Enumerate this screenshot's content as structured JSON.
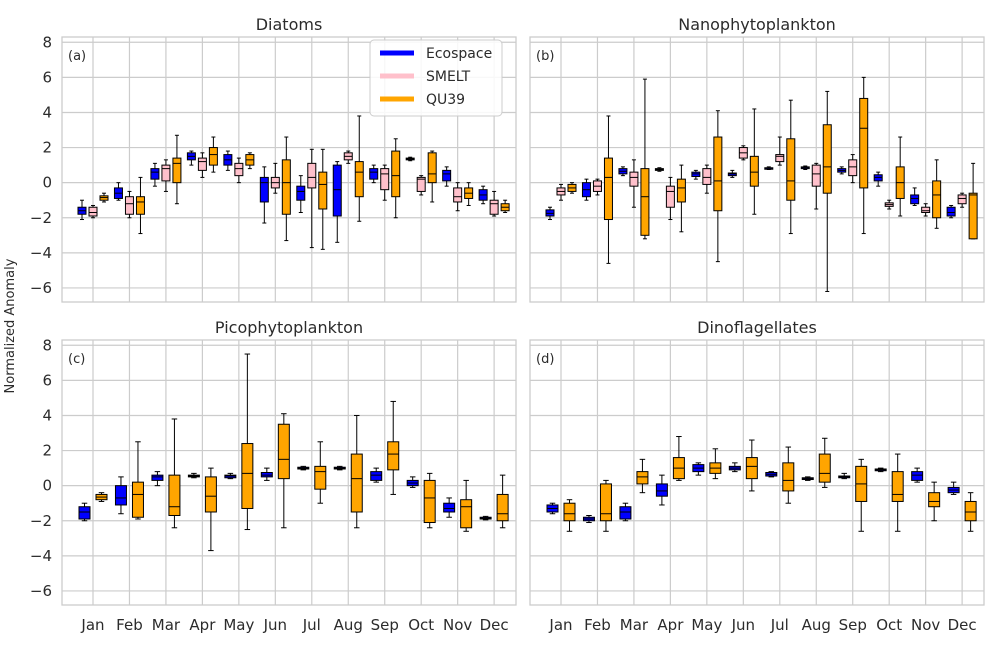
{
  "figure": {
    "ylabel": "Normalized Anomaly"
  },
  "legend": [
    {
      "name": "Ecospace",
      "color": "#0000ff"
    },
    {
      "name": "SMELT",
      "color": "#ffc0cb"
    },
    {
      "name": "QU39",
      "color": "#ffa500"
    }
  ],
  "chart_data": [
    {
      "type": "box",
      "title": "Diatoms",
      "panel_label": "(a)",
      "categories": [
        "Jan",
        "Feb",
        "Mar",
        "Apr",
        "May",
        "Jun",
        "Jul",
        "Aug",
        "Sep",
        "Oct",
        "Nov",
        "Dec"
      ],
      "ylim": [
        -6.8,
        8.3
      ],
      "yticks": [
        -6,
        -4,
        -2,
        0,
        2,
        4,
        6,
        8
      ],
      "grid": true,
      "legend_position": "top-right",
      "show_x_ticklabels": false,
      "show_y_ticklabels": true,
      "series": [
        {
          "name": "Ecospace",
          "boxes": [
            [
              -2.1,
              -1.8,
              -1.6,
              -1.4,
              -1.0
            ],
            [
              -1.0,
              -0.9,
              -0.6,
              -0.3,
              0.0
            ],
            [
              -0.2,
              0.2,
              0.6,
              0.8,
              1.1
            ],
            [
              1.0,
              1.3,
              1.5,
              1.7,
              1.8
            ],
            [
              0.7,
              1.0,
              1.3,
              1.6,
              1.8
            ],
            [
              -2.3,
              -1.1,
              0.0,
              0.3,
              0.9
            ],
            [
              -1.7,
              -1.0,
              -0.5,
              -0.2,
              0.4
            ],
            [
              -3.4,
              -1.9,
              -0.4,
              1.0,
              1.2
            ],
            [
              0.0,
              0.2,
              0.6,
              0.8,
              1.0
            ],
            [
              1.25,
              1.3,
              1.35,
              1.4,
              1.45
            ],
            [
              -0.2,
              0.1,
              0.5,
              0.7,
              0.9
            ],
            [
              -1.2,
              -1.0,
              -0.7,
              -0.4,
              -0.2
            ]
          ]
        },
        {
          "name": "SMELT",
          "boxes": [
            [
              -2.0,
              -1.9,
              -1.7,
              -1.4,
              -1.3
            ],
            [
              -2.0,
              -1.8,
              -1.2,
              -0.8,
              -0.5
            ],
            [
              -0.5,
              0.1,
              0.8,
              1.0,
              1.3
            ],
            [
              0.3,
              0.7,
              1.2,
              1.4,
              1.7
            ],
            [
              0.0,
              0.4,
              0.8,
              1.1,
              1.4
            ],
            [
              -0.6,
              -0.3,
              0.0,
              0.3,
              1.1
            ],
            [
              -3.7,
              -0.3,
              0.3,
              1.1,
              1.9
            ],
            [
              1.1,
              1.3,
              1.5,
              1.7,
              1.8
            ],
            [
              -1.0,
              -0.4,
              0.5,
              0.8,
              1.0
            ],
            [
              -0.7,
              -0.5,
              0.2,
              0.3,
              0.4
            ],
            [
              -1.6,
              -1.1,
              -0.8,
              -0.3,
              0.0
            ],
            [
              -1.9,
              -1.8,
              -1.2,
              -1.0,
              -0.5
            ]
          ]
        },
        {
          "name": "QU39",
          "boxes": [
            [
              -1.1,
              -1.0,
              -0.85,
              -0.75,
              -0.6
            ],
            [
              -2.9,
              -1.8,
              -1.1,
              -0.8,
              0.3
            ],
            [
              -1.2,
              0.0,
              1.1,
              1.4,
              2.7
            ],
            [
              0.6,
              1.0,
              1.6,
              2.0,
              2.6
            ],
            [
              0.8,
              1.0,
              1.3,
              1.6,
              1.7
            ],
            [
              -3.3,
              -1.8,
              0.0,
              1.3,
              2.6
            ],
            [
              -3.8,
              -1.5,
              -0.1,
              0.6,
              1.9
            ],
            [
              -2.2,
              -0.8,
              0.6,
              1.2,
              3.8
            ],
            [
              -2.0,
              -0.8,
              0.4,
              1.8,
              2.5
            ],
            [
              -1.1,
              0.0,
              0.5,
              1.7,
              1.8
            ],
            [
              -1.3,
              -0.9,
              -0.6,
              -0.3,
              0.0
            ],
            [
              -1.7,
              -1.6,
              -1.4,
              -1.2,
              -1.0
            ]
          ]
        }
      ]
    },
    {
      "type": "box",
      "title": "Nanophytoplankton",
      "panel_label": "(b)",
      "categories": [
        "Jan",
        "Feb",
        "Mar",
        "Apr",
        "May",
        "Jun",
        "Jul",
        "Aug",
        "Sep",
        "Oct",
        "Nov",
        "Dec"
      ],
      "ylim": [
        -6.8,
        8.3
      ],
      "yticks": [
        -6,
        -4,
        -2,
        0,
        2,
        4,
        6,
        8
      ],
      "grid": true,
      "show_x_ticklabels": false,
      "show_y_ticklabels": false,
      "series": [
        {
          "name": "Ecospace",
          "boxes": [
            [
              -2.1,
              -1.9,
              -1.75,
              -1.55,
              -1.4
            ],
            [
              -1.0,
              -0.8,
              -0.4,
              0.0,
              0.2
            ],
            [
              0.4,
              0.5,
              0.65,
              0.8,
              0.9
            ],
            [
              0.65,
              0.7,
              0.75,
              0.8,
              0.85
            ],
            [
              0.2,
              0.35,
              0.5,
              0.6,
              0.7
            ],
            [
              0.3,
              0.4,
              0.5,
              0.55,
              0.7
            ],
            [
              0.75,
              0.78,
              0.82,
              0.85,
              0.9
            ],
            [
              0.75,
              0.8,
              0.85,
              0.9,
              0.95
            ],
            [
              0.5,
              0.6,
              0.7,
              0.8,
              0.9
            ],
            [
              -0.2,
              0.1,
              0.3,
              0.45,
              0.6
            ],
            [
              -1.3,
              -1.2,
              -0.9,
              -0.7,
              -0.3
            ],
            [
              -2.0,
              -1.9,
              -1.7,
              -1.4,
              -1.3
            ]
          ]
        },
        {
          "name": "SMELT",
          "boxes": [
            [
              -1.0,
              -0.7,
              -0.5,
              -0.3,
              -0.1
            ],
            [
              -0.7,
              -0.5,
              -0.2,
              0.1,
              0.2
            ],
            [
              -1.4,
              -0.2,
              0.3,
              0.6,
              1.3
            ],
            [
              -2.1,
              -1.4,
              -0.5,
              -0.2,
              0.3
            ],
            [
              -0.6,
              -0.1,
              0.3,
              0.8,
              1.0
            ],
            [
              1.3,
              1.4,
              1.7,
              2.0,
              2.1
            ],
            [
              1.0,
              1.2,
              1.5,
              1.6,
              2.6
            ],
            [
              -1.5,
              -0.2,
              0.5,
              1.0,
              1.1
            ],
            [
              0.0,
              0.4,
              0.9,
              1.3,
              1.6
            ],
            [
              -1.5,
              -1.35,
              -1.25,
              -1.15,
              -1.0
            ],
            [
              -1.9,
              -1.7,
              -1.6,
              -1.4,
              -1.2
            ],
            [
              -1.4,
              -1.2,
              -0.9,
              -0.7,
              -0.6
            ]
          ]
        },
        {
          "name": "QU39",
          "boxes": [
            [
              -0.6,
              -0.5,
              -0.3,
              -0.1,
              0.0
            ],
            [
              -4.6,
              -2.1,
              0.3,
              1.4,
              3.8
            ],
            [
              -3.2,
              -3.0,
              -0.8,
              0.8,
              5.9
            ],
            [
              -2.8,
              -1.1,
              -0.3,
              0.2,
              1.0
            ],
            [
              -4.5,
              -1.6,
              0.1,
              2.6,
              4.1
            ],
            [
              -1.8,
              -0.2,
              0.6,
              1.5,
              4.2
            ],
            [
              -2.9,
              -1.0,
              0.1,
              2.5,
              4.7
            ],
            [
              -6.2,
              -0.6,
              0.9,
              3.3,
              5.2
            ],
            [
              -2.9,
              -0.3,
              3.1,
              4.8,
              6.0
            ],
            [
              -1.9,
              -0.9,
              0.0,
              0.9,
              2.6
            ],
            [
              -2.6,
              -2.0,
              -0.7,
              0.1,
              1.3
            ],
            [
              -3.2,
              -3.2,
              -0.7,
              -0.6,
              1.1
            ]
          ]
        }
      ]
    },
    {
      "type": "box",
      "title": "Picophytoplankton",
      "panel_label": "(c)",
      "categories": [
        "Jan",
        "Feb",
        "Mar",
        "Apr",
        "May",
        "Jun",
        "Jul",
        "Aug",
        "Sep",
        "Oct",
        "Nov",
        "Dec"
      ],
      "ylim": [
        -6.8,
        8.3
      ],
      "yticks": [
        -6,
        -4,
        -2,
        0,
        2,
        4,
        6,
        8
      ],
      "grid": true,
      "show_x_ticklabels": true,
      "show_y_ticklabels": true,
      "series": [
        {
          "name": "Ecospace",
          "boxes": [
            [
              -2.0,
              -1.9,
              -1.5,
              -1.2,
              -1.0
            ],
            [
              -1.6,
              -1.1,
              -0.7,
              0.0,
              0.5
            ],
            [
              0.0,
              0.3,
              0.5,
              0.6,
              0.8
            ],
            [
              0.45,
              0.5,
              0.55,
              0.6,
              0.7
            ],
            [
              0.4,
              0.45,
              0.55,
              0.6,
              0.7
            ],
            [
              0.3,
              0.5,
              0.6,
              0.75,
              1.0
            ],
            [
              0.9,
              0.95,
              1.0,
              1.05,
              1.1
            ],
            [
              0.9,
              0.95,
              1.0,
              1.05,
              1.1
            ],
            [
              0.2,
              0.3,
              0.6,
              0.8,
              1.0
            ],
            [
              -0.1,
              0.0,
              0.15,
              0.3,
              0.5
            ],
            [
              -1.8,
              -1.5,
              -1.3,
              -1.0,
              -0.7
            ],
            [
              -1.95,
              -1.9,
              -1.85,
              -1.8,
              -1.75
            ]
          ]
        },
        {
          "name": "QU39",
          "boxes": [
            [
              -0.9,
              -0.8,
              -0.65,
              -0.5,
              -0.4
            ],
            [
              -1.9,
              -1.8,
              -0.5,
              0.2,
              2.5
            ],
            [
              -2.4,
              -1.7,
              -1.2,
              0.6,
              3.8
            ],
            [
              -3.7,
              -1.5,
              -0.6,
              0.5,
              1.0
            ],
            [
              -2.5,
              -1.3,
              0.7,
              2.4,
              7.5
            ],
            [
              -2.4,
              0.4,
              1.5,
              3.5,
              4.1
            ],
            [
              -1.0,
              -0.2,
              0.8,
              1.1,
              2.5
            ],
            [
              -2.4,
              -1.5,
              0.4,
              1.8,
              4.0
            ],
            [
              -0.5,
              0.9,
              1.8,
              2.5,
              4.8
            ],
            [
              -2.4,
              -2.1,
              -0.7,
              0.3,
              0.7
            ],
            [
              -2.6,
              -2.4,
              -1.2,
              -0.8,
              0.3
            ],
            [
              -2.4,
              -2.0,
              -1.6,
              -0.5,
              0.6
            ]
          ]
        }
      ]
    },
    {
      "type": "box",
      "title": "Dinoflagellates",
      "panel_label": "(d)",
      "categories": [
        "Jan",
        "Feb",
        "Mar",
        "Apr",
        "May",
        "Jun",
        "Jul",
        "Aug",
        "Sep",
        "Oct",
        "Nov",
        "Dec"
      ],
      "ylim": [
        -6.8,
        8.3
      ],
      "yticks": [
        -6,
        -4,
        -2,
        0,
        2,
        4,
        6,
        8
      ],
      "grid": true,
      "show_x_ticklabels": true,
      "show_y_ticklabels": false,
      "series": [
        {
          "name": "Ecospace",
          "boxes": [
            [
              -1.6,
              -1.5,
              -1.3,
              -1.1,
              -1.0
            ],
            [
              -2.1,
              -2.0,
              -1.9,
              -1.8,
              -1.7
            ],
            [
              -2.0,
              -1.9,
              -1.5,
              -1.2,
              -1.0
            ],
            [
              -1.1,
              -0.6,
              -0.3,
              0.1,
              0.6
            ],
            [
              0.6,
              0.8,
              1.0,
              1.2,
              1.3
            ],
            [
              0.8,
              0.9,
              1.0,
              1.1,
              1.3
            ],
            [
              0.5,
              0.55,
              0.65,
              0.75,
              0.8
            ],
            [
              0.3,
              0.35,
              0.4,
              0.45,
              0.5
            ],
            [
              0.4,
              0.45,
              0.5,
              0.55,
              0.7
            ],
            [
              0.8,
              0.85,
              0.9,
              0.95,
              1.0
            ],
            [
              0.2,
              0.3,
              0.6,
              0.8,
              1.0
            ],
            [
              -0.5,
              -0.4,
              -0.25,
              -0.1,
              0.2
            ]
          ]
        },
        {
          "name": "QU39",
          "boxes": [
            [
              -2.6,
              -2.0,
              -1.6,
              -1.0,
              -0.8
            ],
            [
              -2.6,
              -2.0,
              -1.6,
              0.1,
              0.3
            ],
            [
              -0.4,
              0.1,
              0.5,
              0.8,
              1.5
            ],
            [
              0.3,
              0.4,
              1.0,
              1.6,
              2.8
            ],
            [
              0.4,
              0.7,
              1.0,
              1.3,
              2.1
            ],
            [
              -0.3,
              0.4,
              1.1,
              1.6,
              2.6
            ],
            [
              -1.0,
              -0.3,
              0.3,
              1.3,
              2.2
            ],
            [
              -0.1,
              0.2,
              0.7,
              1.8,
              2.7
            ],
            [
              -2.6,
              -0.9,
              0.1,
              1.1,
              1.5
            ],
            [
              -2.6,
              -0.9,
              -0.5,
              0.8,
              1.8
            ],
            [
              -2.0,
              -1.2,
              -0.9,
              -0.4,
              0.2
            ],
            [
              -2.6,
              -2.0,
              -1.5,
              -0.9,
              -0.4
            ]
          ]
        }
      ]
    }
  ]
}
